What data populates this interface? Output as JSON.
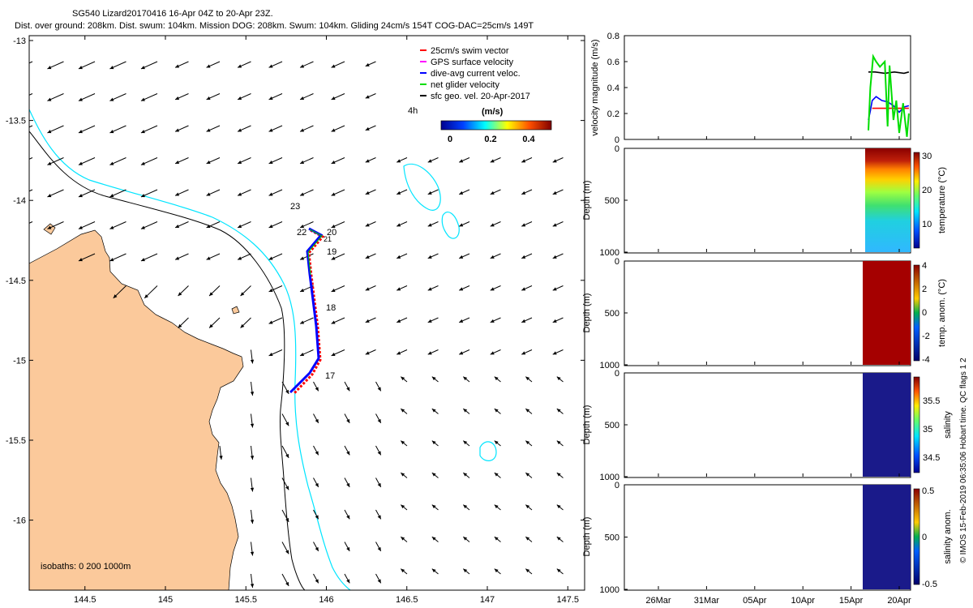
{
  "header": {
    "title": "SG540 Lizard20170416 16-Apr 04Z to 20-Apr 23Z.",
    "subtitle": "Dist. over ground: 208km. Dist. swum: 104km. Mission DOG: 208km. Swum: 104km. Gliding 24cm/s 154T COG-DAC=25cm/s 149T"
  },
  "map": {
    "x_ticks": [
      "144.5",
      "145",
      "145.5",
      "146",
      "146.5",
      "147",
      "147.5"
    ],
    "y_ticks": [
      "-13",
      "-13.5",
      "-14",
      "-14.5",
      "-15",
      "-15.5",
      "-16"
    ],
    "legend": [
      {
        "label": "25cm/s swim vector",
        "color": "#ff0000"
      },
      {
        "label": "GPS surface velocity",
        "color": "#ff00ff"
      },
      {
        "label": "dive-avg current veloc.",
        "color": "#0000ff"
      },
      {
        "label": "net glider velocity",
        "color": "#00dd00"
      },
      {
        "label": "sfc geo. vel. 20-Apr-2017",
        "color": "#000000"
      }
    ],
    "colorbar_unit": "(m/s)",
    "colorbar_ticks": [
      "0",
      "0.2",
      "0.4"
    ],
    "hour_label": "4h",
    "isobaths": "isobaths: 0   200  1000m",
    "track_day_labels": [
      "23",
      "22",
      "21",
      "20",
      "19",
      "18",
      "17"
    ],
    "land_color": "#fbc99b",
    "isobath_200_color": "#000000",
    "isobath_1000_color": "#00e5ff"
  },
  "chart_data": [
    {
      "type": "line",
      "ylabel": "velocity magnitude (m/s)",
      "ylim": [
        0,
        0.8
      ],
      "y_ticks": [
        "0",
        "0.2",
        "0.4",
        "0.6",
        "0.8"
      ],
      "series": [
        {
          "color": "#000000",
          "x": [
            16.8,
            17.5,
            18.5,
            19.5,
            20.5,
            21.0
          ],
          "values": [
            0.52,
            0.52,
            0.51,
            0.52,
            0.51,
            0.52
          ]
        },
        {
          "color": "#0000ff",
          "x": [
            16.8,
            17.0,
            17.2,
            17.6,
            18.2,
            18.8,
            19.4,
            20.0,
            20.5,
            21.0
          ],
          "values": [
            0.15,
            0.22,
            0.3,
            0.33,
            0.3,
            0.29,
            0.26,
            0.21,
            0.25,
            0.26
          ]
        },
        {
          "color": "#ff0000",
          "x": [
            17.2,
            21.0
          ],
          "values": [
            0.24,
            0.24
          ]
        },
        {
          "color": "#00dd00",
          "x": [
            16.8,
            17.0,
            17.3,
            17.6,
            18.0,
            18.5,
            18.8,
            19.0,
            19.4,
            19.7,
            20.0,
            20.4,
            20.8,
            21.0
          ],
          "values": [
            0.07,
            0.4,
            0.64,
            0.6,
            0.56,
            0.6,
            0.1,
            0.57,
            0.15,
            0.3,
            0.05,
            0.28,
            0.02,
            0.2
          ]
        }
      ]
    },
    {
      "type": "heatmap",
      "ylabel": "Depth (m)",
      "ylim": [
        1000,
        0
      ],
      "y_ticks": [
        "0",
        "500",
        "1000"
      ],
      "colorbar_label": "temperature (°C)",
      "colorbar_ticks": [
        "30",
        "20",
        "10"
      ]
    },
    {
      "type": "heatmap",
      "ylabel": "Depth (m)",
      "ylim": [
        1000,
        0
      ],
      "y_ticks": [
        "0",
        "500",
        "1000"
      ],
      "colorbar_label": "temp. anom. (°C)",
      "colorbar_ticks": [
        "4",
        "2",
        "0",
        "-2",
        "-4"
      ]
    },
    {
      "type": "heatmap",
      "ylabel": "Depth (m)",
      "ylim": [
        1000,
        0
      ],
      "y_ticks": [
        "0",
        "500",
        "1000"
      ],
      "colorbar_label": "salinity",
      "colorbar_ticks": [
        "35.5",
        "35",
        "34.5"
      ]
    },
    {
      "type": "heatmap",
      "ylabel": "Depth (m)",
      "ylim": [
        1000,
        0
      ],
      "y_ticks": [
        "0",
        "500",
        "1000"
      ],
      "colorbar_label": "salinity anom.",
      "colorbar_ticks": [
        "0.5",
        "0",
        "-0.5"
      ],
      "x_ticks": [
        "26Mar",
        "31Mar",
        "05Apr",
        "10Apr",
        "15Apr",
        "20Apr"
      ]
    }
  ],
  "footer": {
    "credit": "© IMOS 15-Feb-2019 06:35:06 Hobart time. QC flags 1  2"
  }
}
